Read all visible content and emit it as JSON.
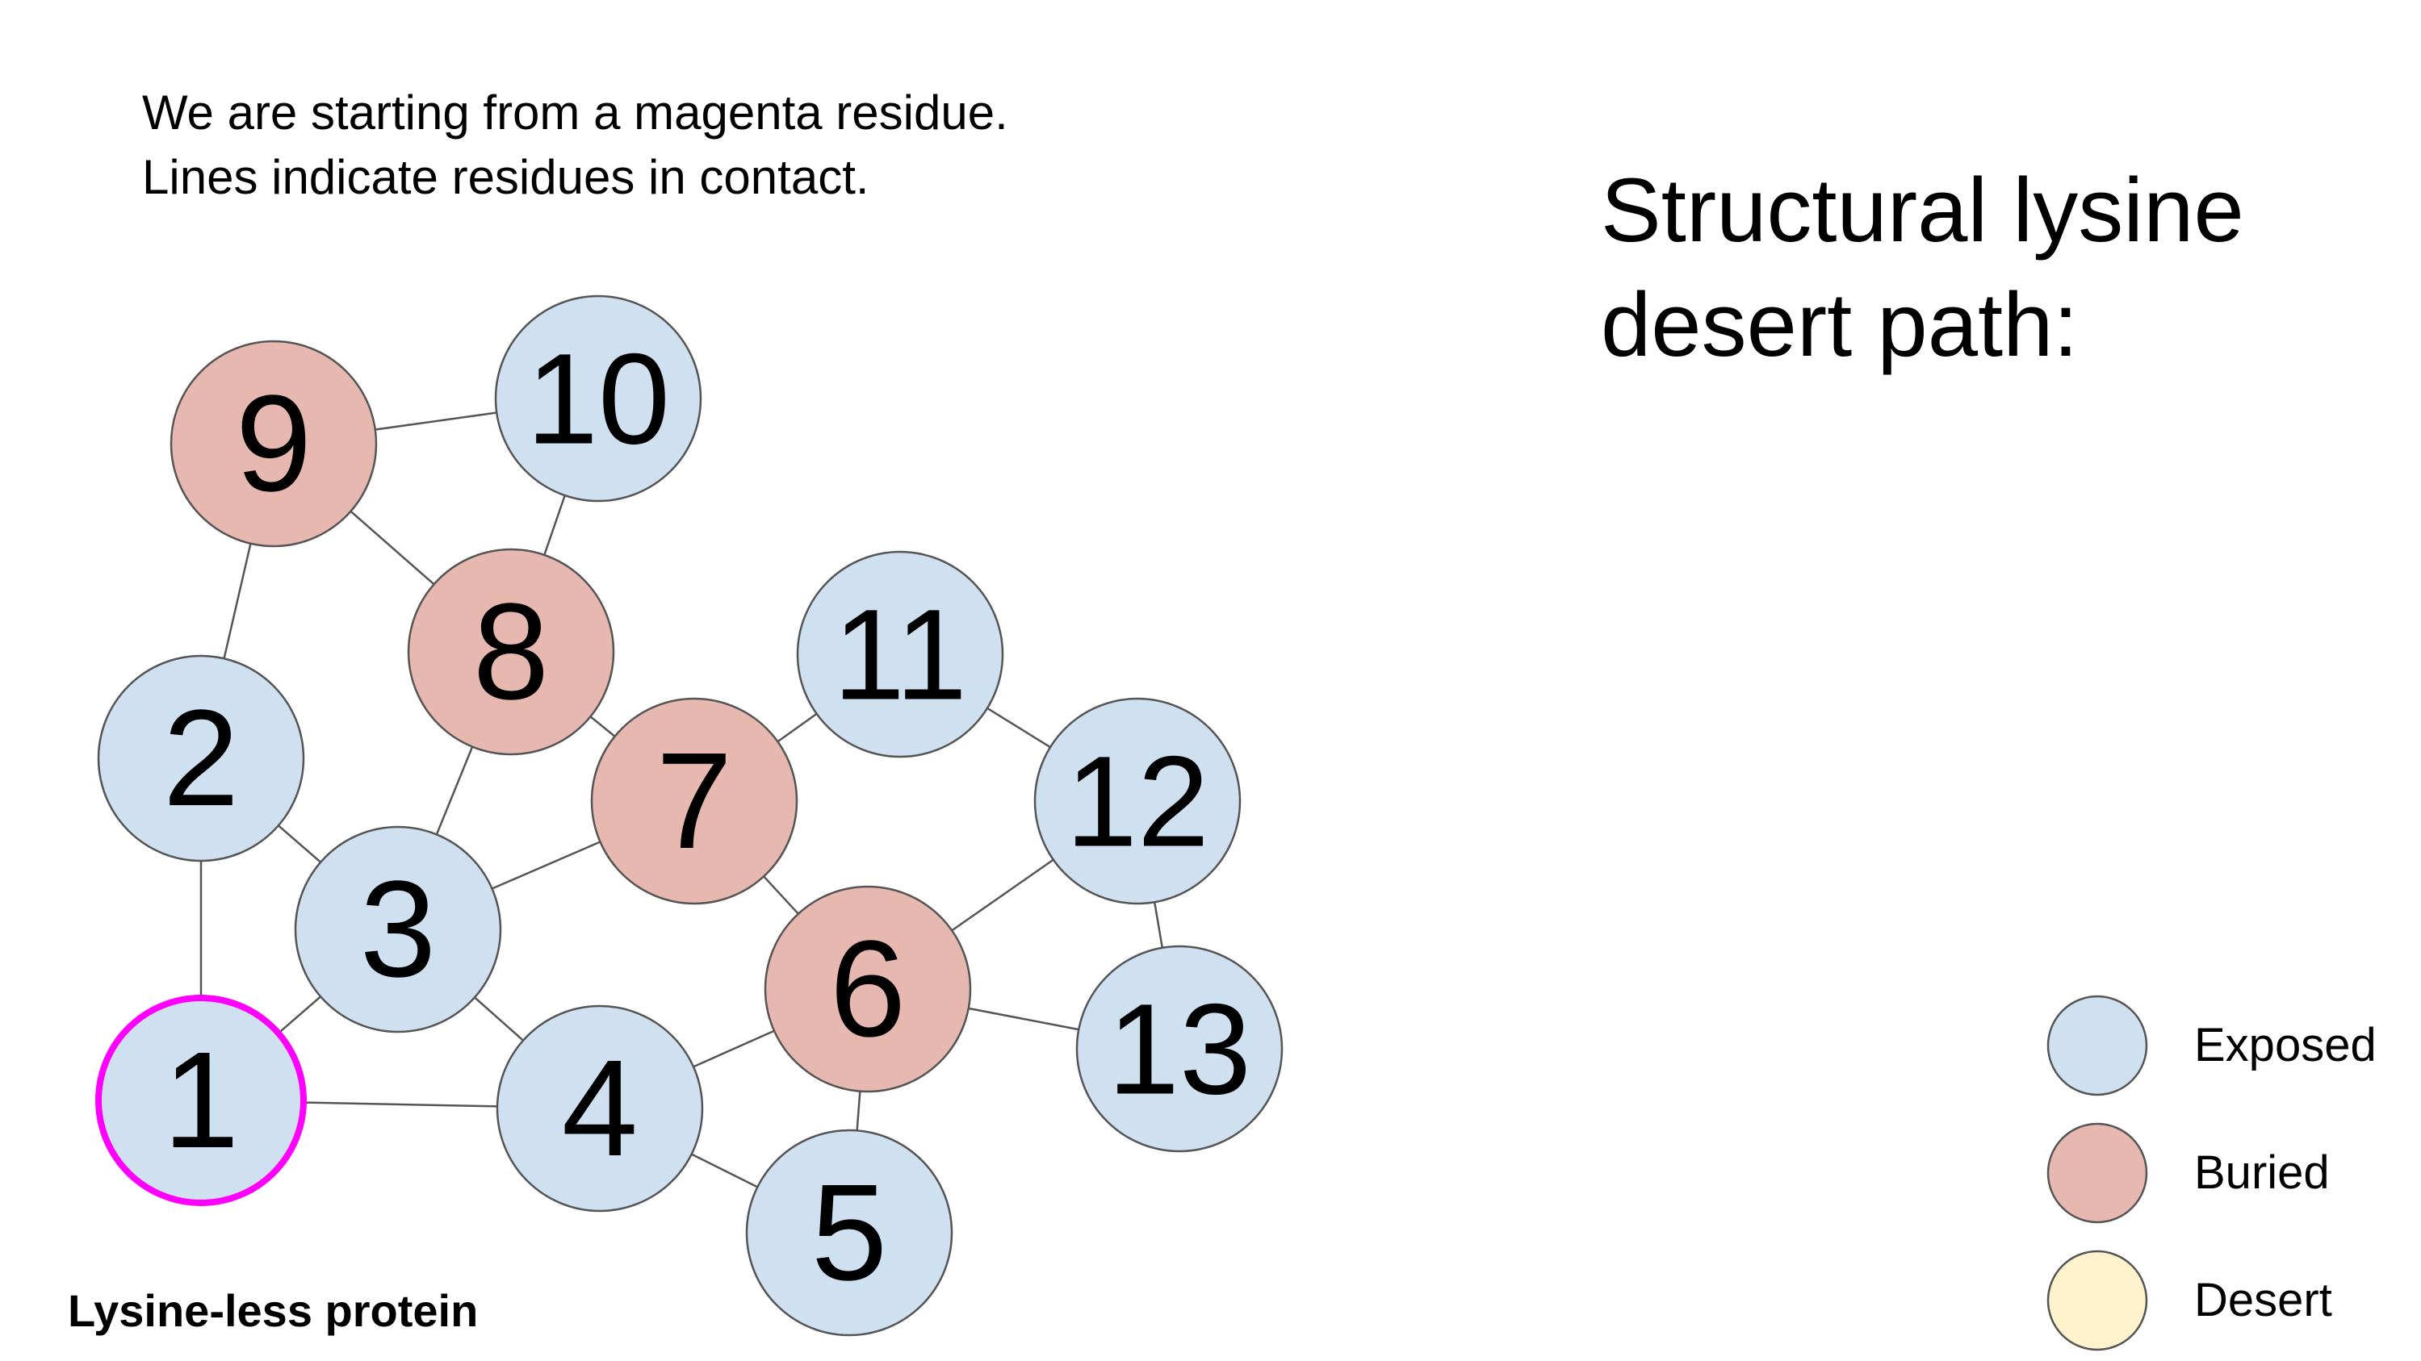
{
  "intro": {
    "line1": "We are starting from a magenta residue.",
    "line2": "Lines indicate residues in contact."
  },
  "title": "Structural lysine desert path:",
  "caption": "Lysine-less protein",
  "colors": {
    "exposed": "#cfe1f1",
    "buried": "#e6b8af",
    "desert": "#fff2cc",
    "start_outline": "#ff00ff",
    "node_outline": "#555555",
    "edge": "#555555"
  },
  "legend": [
    {
      "label": "Exposed",
      "state": "exposed"
    },
    {
      "label": "Buried",
      "state": "buried"
    },
    {
      "label": "Desert",
      "state": "desert"
    }
  ],
  "residues": [
    {
      "id": "1",
      "state": "exposed",
      "start": true
    },
    {
      "id": "2",
      "state": "exposed"
    },
    {
      "id": "3",
      "state": "exposed"
    },
    {
      "id": "4",
      "state": "exposed"
    },
    {
      "id": "5",
      "state": "exposed"
    },
    {
      "id": "6",
      "state": "buried"
    },
    {
      "id": "7",
      "state": "buried"
    },
    {
      "id": "8",
      "state": "buried"
    },
    {
      "id": "9",
      "state": "buried"
    },
    {
      "id": "10",
      "state": "exposed"
    },
    {
      "id": "11",
      "state": "exposed"
    },
    {
      "id": "12",
      "state": "exposed"
    },
    {
      "id": "13",
      "state": "exposed"
    }
  ],
  "contacts": [
    [
      "1",
      "2"
    ],
    [
      "1",
      "3"
    ],
    [
      "1",
      "4"
    ],
    [
      "2",
      "3"
    ],
    [
      "2",
      "9"
    ],
    [
      "3",
      "4"
    ],
    [
      "3",
      "7"
    ],
    [
      "3",
      "8"
    ],
    [
      "4",
      "5"
    ],
    [
      "4",
      "6"
    ],
    [
      "5",
      "6"
    ],
    [
      "6",
      "7"
    ],
    [
      "6",
      "12"
    ],
    [
      "6",
      "13"
    ],
    [
      "7",
      "8"
    ],
    [
      "7",
      "11"
    ],
    [
      "8",
      "9"
    ],
    [
      "8",
      "10"
    ],
    [
      "9",
      "10"
    ],
    [
      "11",
      "12"
    ],
    [
      "12",
      "13"
    ]
  ]
}
